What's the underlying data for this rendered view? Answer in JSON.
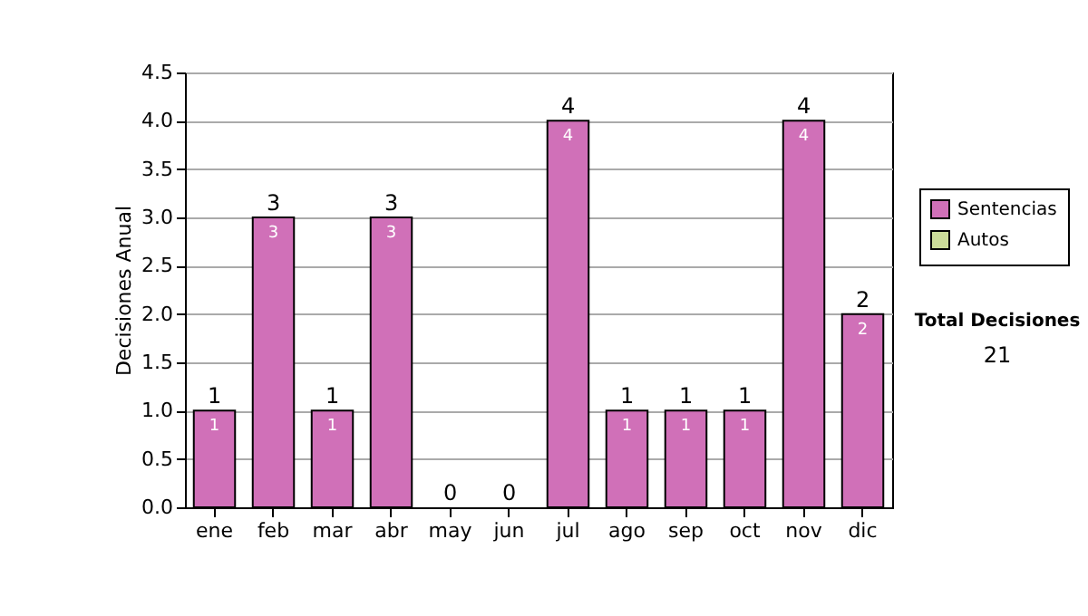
{
  "chart_data": {
    "type": "bar",
    "stacked": true,
    "ylabel": "Decisiones Anual",
    "categories": [
      "ene",
      "feb",
      "mar",
      "abr",
      "may",
      "jun",
      "jul",
      "ago",
      "sep",
      "oct",
      "nov",
      "dic"
    ],
    "series": [
      {
        "name": "Sentencias",
        "color": "#d070b8",
        "values": [
          1,
          3,
          1,
          3,
          0,
          0,
          4,
          1,
          1,
          1,
          4,
          2
        ],
        "value_labels": [
          "1",
          "3",
          "1",
          "3",
          null,
          null,
          "4",
          "1",
          "1",
          "1",
          "4",
          "2"
        ]
      },
      {
        "name": "Autos",
        "color": "#ccdd99",
        "values": [
          0,
          0,
          0,
          0,
          0,
          0,
          0,
          0,
          0,
          0,
          0,
          0
        ]
      }
    ],
    "totals": [
      "1",
      "3",
      "1",
      "3",
      "0",
      "0",
      "4",
      "1",
      "1",
      "1",
      "4",
      "2"
    ],
    "ylim": [
      0,
      4.5
    ],
    "yticks": [
      {
        "value": 0,
        "label": "0.0"
      },
      {
        "value": 0.5,
        "label": "0.5"
      },
      {
        "value": 1,
        "label": "1.0"
      },
      {
        "value": 1.5,
        "label": "1.5"
      },
      {
        "value": 2,
        "label": "2.0"
      },
      {
        "value": 2.5,
        "label": "2.5"
      },
      {
        "value": 3,
        "label": "3.0"
      },
      {
        "value": 3.5,
        "label": "3.5"
      },
      {
        "value": 4,
        "label": "4.0"
      },
      {
        "value": 4.5,
        "label": "4.5"
      }
    ],
    "grid": "y",
    "legend": "right",
    "annotations": [
      "Total Decisiones",
      "21"
    ]
  }
}
